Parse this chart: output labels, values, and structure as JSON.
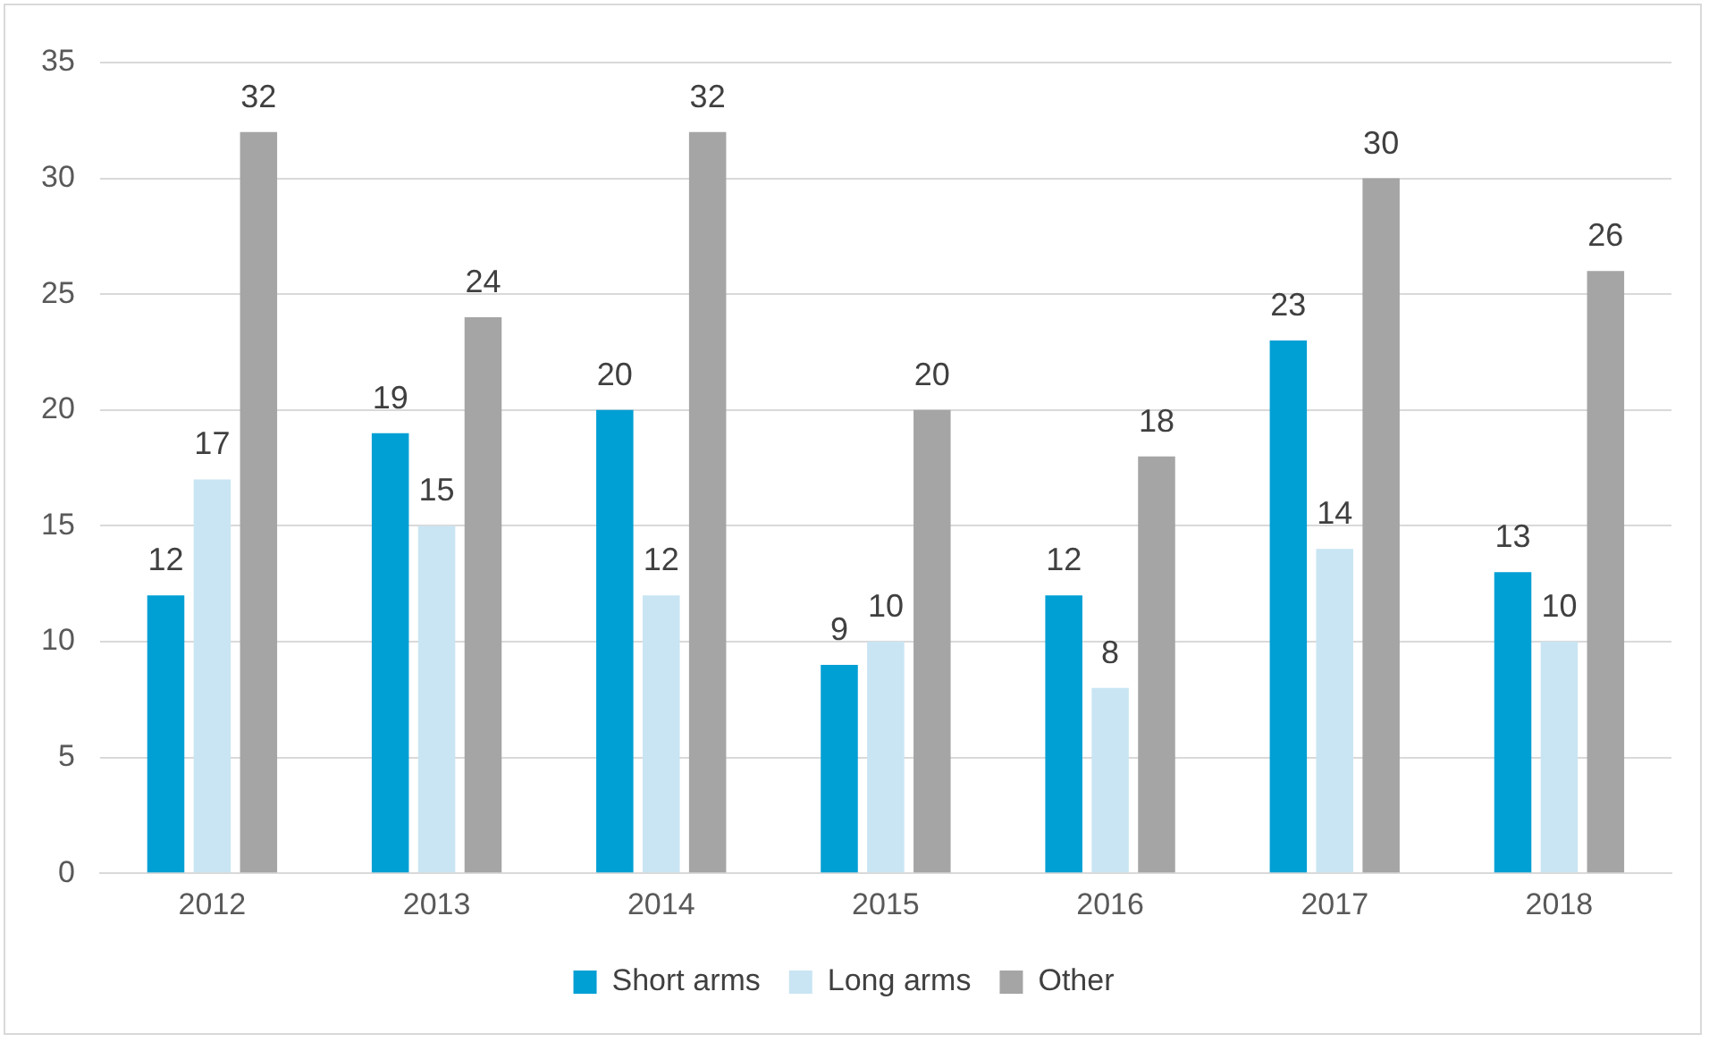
{
  "chart_data": {
    "type": "bar",
    "categories": [
      "2012",
      "2013",
      "2014",
      "2015",
      "2016",
      "2017",
      "2018"
    ],
    "series": [
      {
        "name": "Short arms",
        "color": "#009fd4",
        "values": [
          12,
          19,
          20,
          9,
          12,
          23,
          13
        ]
      },
      {
        "name": "Long arms",
        "color": "#c9e5f3",
        "values": [
          17,
          15,
          12,
          10,
          8,
          14,
          10
        ]
      },
      {
        "name": "Other",
        "color": "#a5a5a5",
        "values": [
          32,
          24,
          32,
          20,
          18,
          30,
          26
        ]
      }
    ],
    "ylim": [
      0,
      35
    ],
    "yticks": [
      0,
      5,
      10,
      15,
      20,
      25,
      30,
      35
    ],
    "grid": "y",
    "legend": "bottom",
    "data_labels": true
  }
}
